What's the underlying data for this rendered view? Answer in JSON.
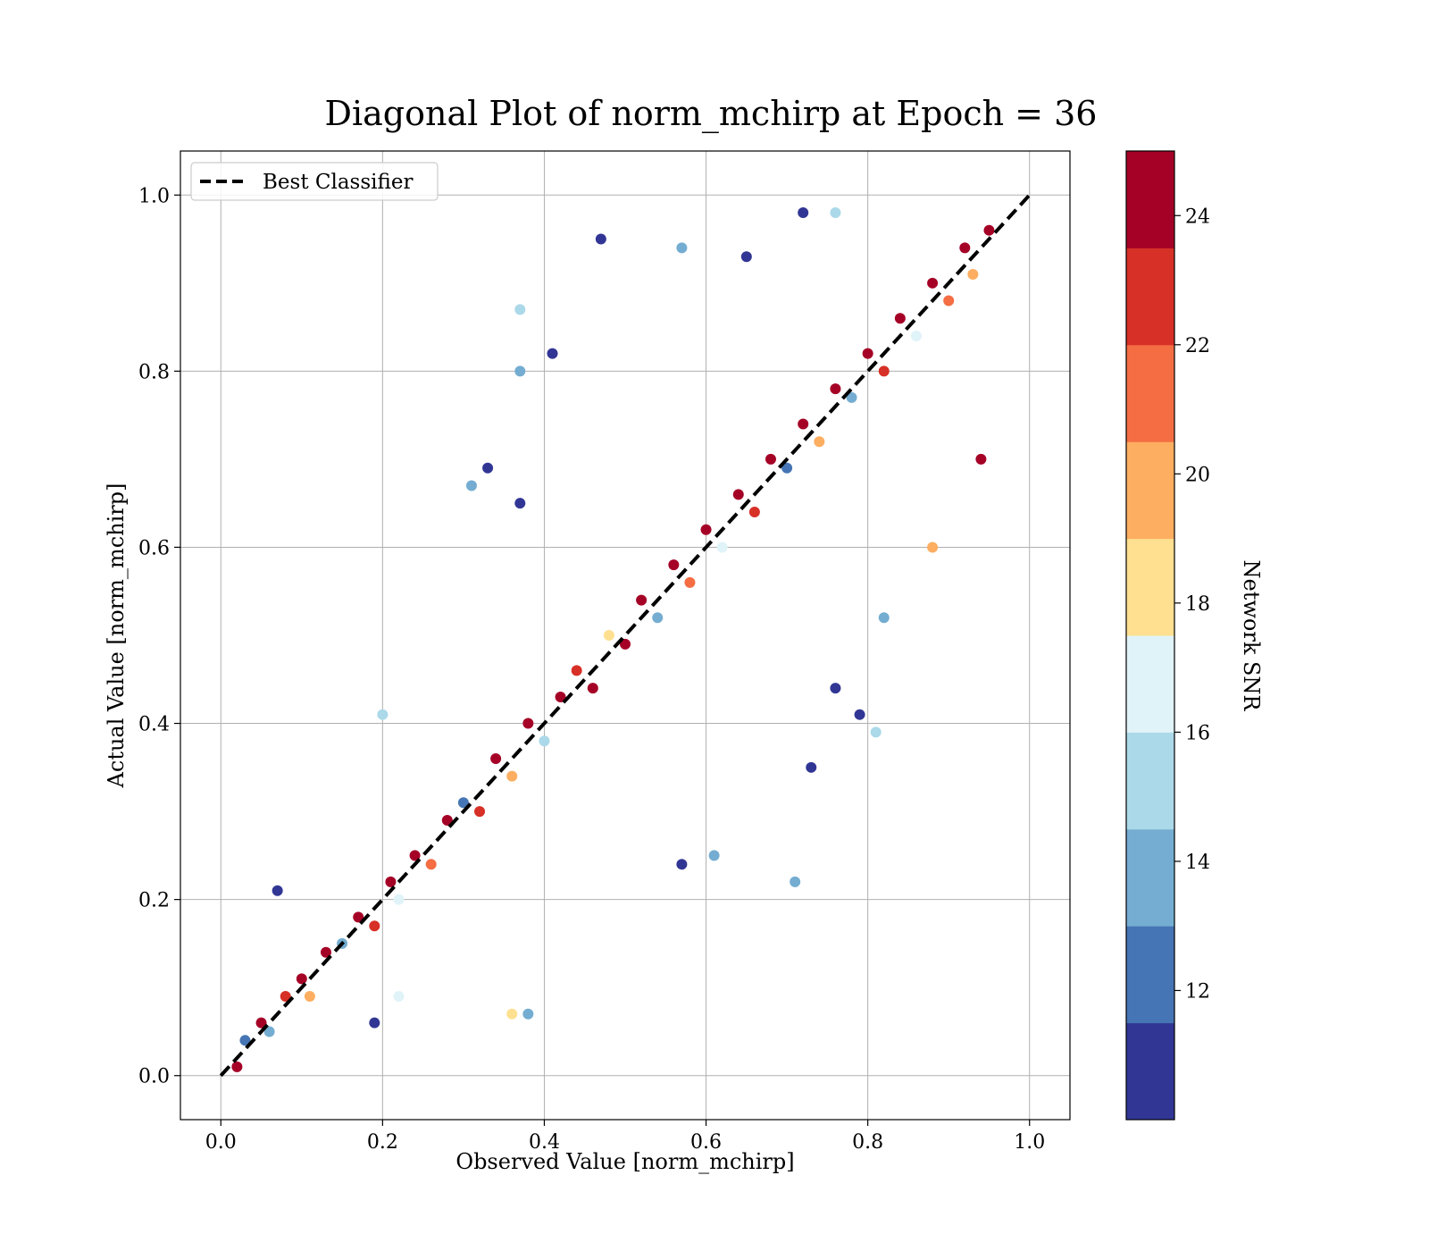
{
  "chart_data": {
    "type": "scatter",
    "title": "Diagonal Plot of norm_mchirp at Epoch = 36",
    "xlabel": "Observed Value [norm_mchirp]",
    "ylabel": "Actual Value [norm_mchirp]",
    "xlim": [
      -0.05,
      1.05
    ],
    "ylim": [
      -0.05,
      1.05
    ],
    "xticks": [
      0.0,
      0.2,
      0.4,
      0.6,
      0.8,
      1.0
    ],
    "yticks": [
      0.0,
      0.2,
      0.4,
      0.6,
      0.8,
      1.0
    ],
    "xtick_labels": [
      "0.0",
      "0.2",
      "0.4",
      "0.6",
      "0.8",
      "1.0"
    ],
    "ytick_labels": [
      "0.0",
      "0.2",
      "0.4",
      "0.6",
      "0.8",
      "1.0"
    ],
    "grid": true,
    "legend": {
      "placement": "top-left",
      "entries": [
        {
          "label": "Best Classifier",
          "style": "dashed",
          "color": "#000000"
        }
      ]
    },
    "reference_line": {
      "name": "Best Classifier",
      "x": [
        0.0,
        1.0
      ],
      "y": [
        0.0,
        1.0
      ],
      "style": "dashed",
      "color": "#000000"
    },
    "colorbar": {
      "label": "Network SNR",
      "range": [
        10,
        25
      ],
      "ticks": [
        12,
        14,
        16,
        18,
        20,
        22,
        24
      ],
      "tick_labels": [
        "12",
        "14",
        "16",
        "18",
        "20",
        "22",
        "24"
      ],
      "colors": [
        "#313695",
        "#4575b4",
        "#74add1",
        "#abd9e9",
        "#e0f3f8",
        "#fee090",
        "#fdae61",
        "#f46d43",
        "#d73027",
        "#a50026"
      ],
      "boundaries": [
        10,
        11.5,
        13,
        14.5,
        16,
        17.5,
        19,
        20.5,
        22,
        23.5,
        25
      ]
    },
    "series": [
      {
        "type": "scatter",
        "points": [
          [
            0.02,
            0.01,
            24
          ],
          [
            0.03,
            0.04,
            12
          ],
          [
            0.05,
            0.06,
            24
          ],
          [
            0.06,
            0.05,
            14
          ],
          [
            0.08,
            0.09,
            22
          ],
          [
            0.1,
            0.11,
            24
          ],
          [
            0.11,
            0.09,
            20
          ],
          [
            0.13,
            0.14,
            24
          ],
          [
            0.15,
            0.15,
            13
          ],
          [
            0.17,
            0.18,
            24
          ],
          [
            0.19,
            0.17,
            22
          ],
          [
            0.21,
            0.22,
            24
          ],
          [
            0.22,
            0.2,
            16
          ],
          [
            0.24,
            0.25,
            24
          ],
          [
            0.26,
            0.24,
            21
          ],
          [
            0.28,
            0.29,
            24
          ],
          [
            0.3,
            0.31,
            12
          ],
          [
            0.32,
            0.3,
            23
          ],
          [
            0.34,
            0.36,
            24
          ],
          [
            0.36,
            0.34,
            19
          ],
          [
            0.38,
            0.4,
            24
          ],
          [
            0.4,
            0.38,
            15
          ],
          [
            0.42,
            0.43,
            24
          ],
          [
            0.44,
            0.46,
            22
          ],
          [
            0.46,
            0.44,
            24
          ],
          [
            0.48,
            0.5,
            18
          ],
          [
            0.5,
            0.49,
            24
          ],
          [
            0.52,
            0.54,
            24
          ],
          [
            0.54,
            0.52,
            13
          ],
          [
            0.56,
            0.58,
            24
          ],
          [
            0.58,
            0.56,
            21
          ],
          [
            0.6,
            0.62,
            24
          ],
          [
            0.62,
            0.6,
            17
          ],
          [
            0.64,
            0.66,
            24
          ],
          [
            0.66,
            0.64,
            23
          ],
          [
            0.68,
            0.7,
            24
          ],
          [
            0.7,
            0.69,
            12
          ],
          [
            0.72,
            0.74,
            24
          ],
          [
            0.74,
            0.72,
            20
          ],
          [
            0.76,
            0.78,
            24
          ],
          [
            0.78,
            0.77,
            14
          ],
          [
            0.8,
            0.82,
            24
          ],
          [
            0.82,
            0.8,
            22
          ],
          [
            0.84,
            0.86,
            24
          ],
          [
            0.86,
            0.84,
            16
          ],
          [
            0.88,
            0.9,
            24
          ],
          [
            0.9,
            0.88,
            21
          ],
          [
            0.92,
            0.94,
            24
          ],
          [
            0.93,
            0.91,
            19
          ],
          [
            0.95,
            0.96,
            24
          ],
          [
            0.37,
            0.87,
            15
          ],
          [
            0.37,
            0.8,
            13
          ],
          [
            0.47,
            0.95,
            11
          ],
          [
            0.57,
            0.94,
            13
          ],
          [
            0.41,
            0.82,
            11
          ],
          [
            0.31,
            0.67,
            13
          ],
          [
            0.33,
            0.69,
            11
          ],
          [
            0.37,
            0.65,
            11
          ],
          [
            0.07,
            0.21,
            11
          ],
          [
            0.2,
            0.41,
            15
          ],
          [
            0.71,
            0.22,
            14
          ],
          [
            0.73,
            0.35,
            11
          ],
          [
            0.81,
            0.39,
            15
          ],
          [
            0.79,
            0.41,
            11
          ],
          [
            0.76,
            0.44,
            11
          ],
          [
            0.61,
            0.25,
            14
          ],
          [
            0.57,
            0.24,
            11
          ],
          [
            0.38,
            0.07,
            14
          ],
          [
            0.36,
            0.07,
            18
          ],
          [
            0.22,
            0.09,
            17
          ],
          [
            0.19,
            0.06,
            11
          ],
          [
            0.94,
            0.7,
            24
          ],
          [
            0.82,
            0.52,
            13
          ],
          [
            0.88,
            0.6,
            20
          ],
          [
            0.65,
            0.93,
            11
          ],
          [
            0.72,
            0.98,
            11
          ],
          [
            0.76,
            0.98,
            15
          ]
        ]
      }
    ]
  }
}
